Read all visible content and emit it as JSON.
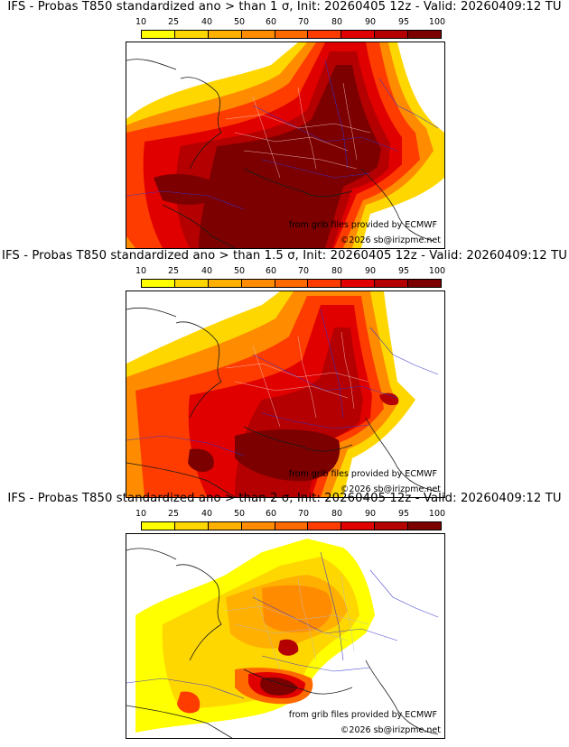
{
  "scale": {
    "ticks": [
      "10",
      "25",
      "40",
      "50",
      "60",
      "70",
      "80",
      "90",
      "95",
      "100"
    ],
    "colors": [
      "#ffff00",
      "#ffd700",
      "#ffb000",
      "#ff8c00",
      "#ff6a00",
      "#ff3c00",
      "#e10000",
      "#b40000",
      "#7d0000"
    ]
  },
  "panels": [
    {
      "title": "IFS - Probas T850  standardized ano > than 1 σ, Init: 20260405 12z - Valid: 20260409:12 TU",
      "credit_source": "from grib files provided by ECMWF",
      "credit_copyright": "©2026 sb@irizpme.net"
    },
    {
      "title": "IFS - Probas T850  standardized ano > than 1.5 σ, Init: 20260405 12z - Valid: 20260409:12 TU",
      "credit_source": "from grib files provided by ECMWF",
      "credit_copyright": "©2026 sb@irizpme.net"
    },
    {
      "title": "IFS - Probas T850  standardized ano > than 2 σ, Init: 20260405 12z - Valid: 20260409:12 TU",
      "credit_source": "from grib files provided by ECMWF",
      "credit_copyright": "©2026 sb@irizpme.net"
    }
  ]
}
